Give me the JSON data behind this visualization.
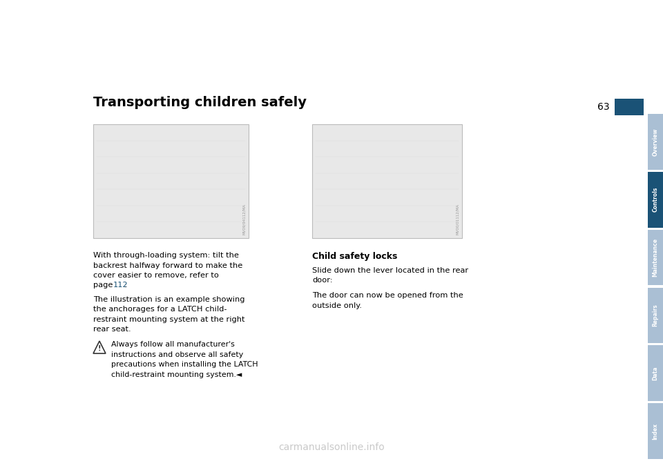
{
  "page_bg": "#ffffff",
  "page_number": "63",
  "title": "Transporting children safely",
  "title_fontsize": 14,
  "page_num_box_color": "#1a5276",
  "page_num_text_color": "#ffffff",
  "sidebar_tabs": [
    "Overview",
    "Controls",
    "Maintenance",
    "Repairs",
    "Data",
    "Index"
  ],
  "sidebar_color_active": "#1a5276",
  "sidebar_color_inactive": "#aabfd4",
  "sidebar_active": "Controls",
  "img_bg": "#e8e8e8",
  "img_border": "#bbbbbb",
  "text_fontsize": 8.2,
  "page_ref_color": "#1a5276",
  "page_ref": "112",
  "warning_triangle_color": "#333333",
  "watermark_text": "carmanualsonline.info",
  "watermark_color": "#c0c0c0",
  "watermark_fontsize": 10,
  "left_para1": [
    "With through-loading system: tilt the",
    "backrest halfway forward to make the",
    "cover easier to remove, refer to"
  ],
  "left_para1_page_line": "page ",
  "left_para1_pagenum": "112",
  "left_para1_period": ".",
  "left_para2": [
    "The illustration is an example showing",
    "the anchorages for a LATCH child-",
    "restraint mounting system at the right",
    "rear seat."
  ],
  "warn_lines": [
    "Always follow all manufacturer's",
    "instructions and observe all safety",
    "precautions when installing the LATCH",
    "child-restraint mounting system.◄"
  ],
  "right_header": "Child safety locks",
  "right_para1": [
    "Slide down the lever located in the rear",
    "door:"
  ],
  "right_para2": [
    "The door can now be opened from the",
    "outside only."
  ]
}
